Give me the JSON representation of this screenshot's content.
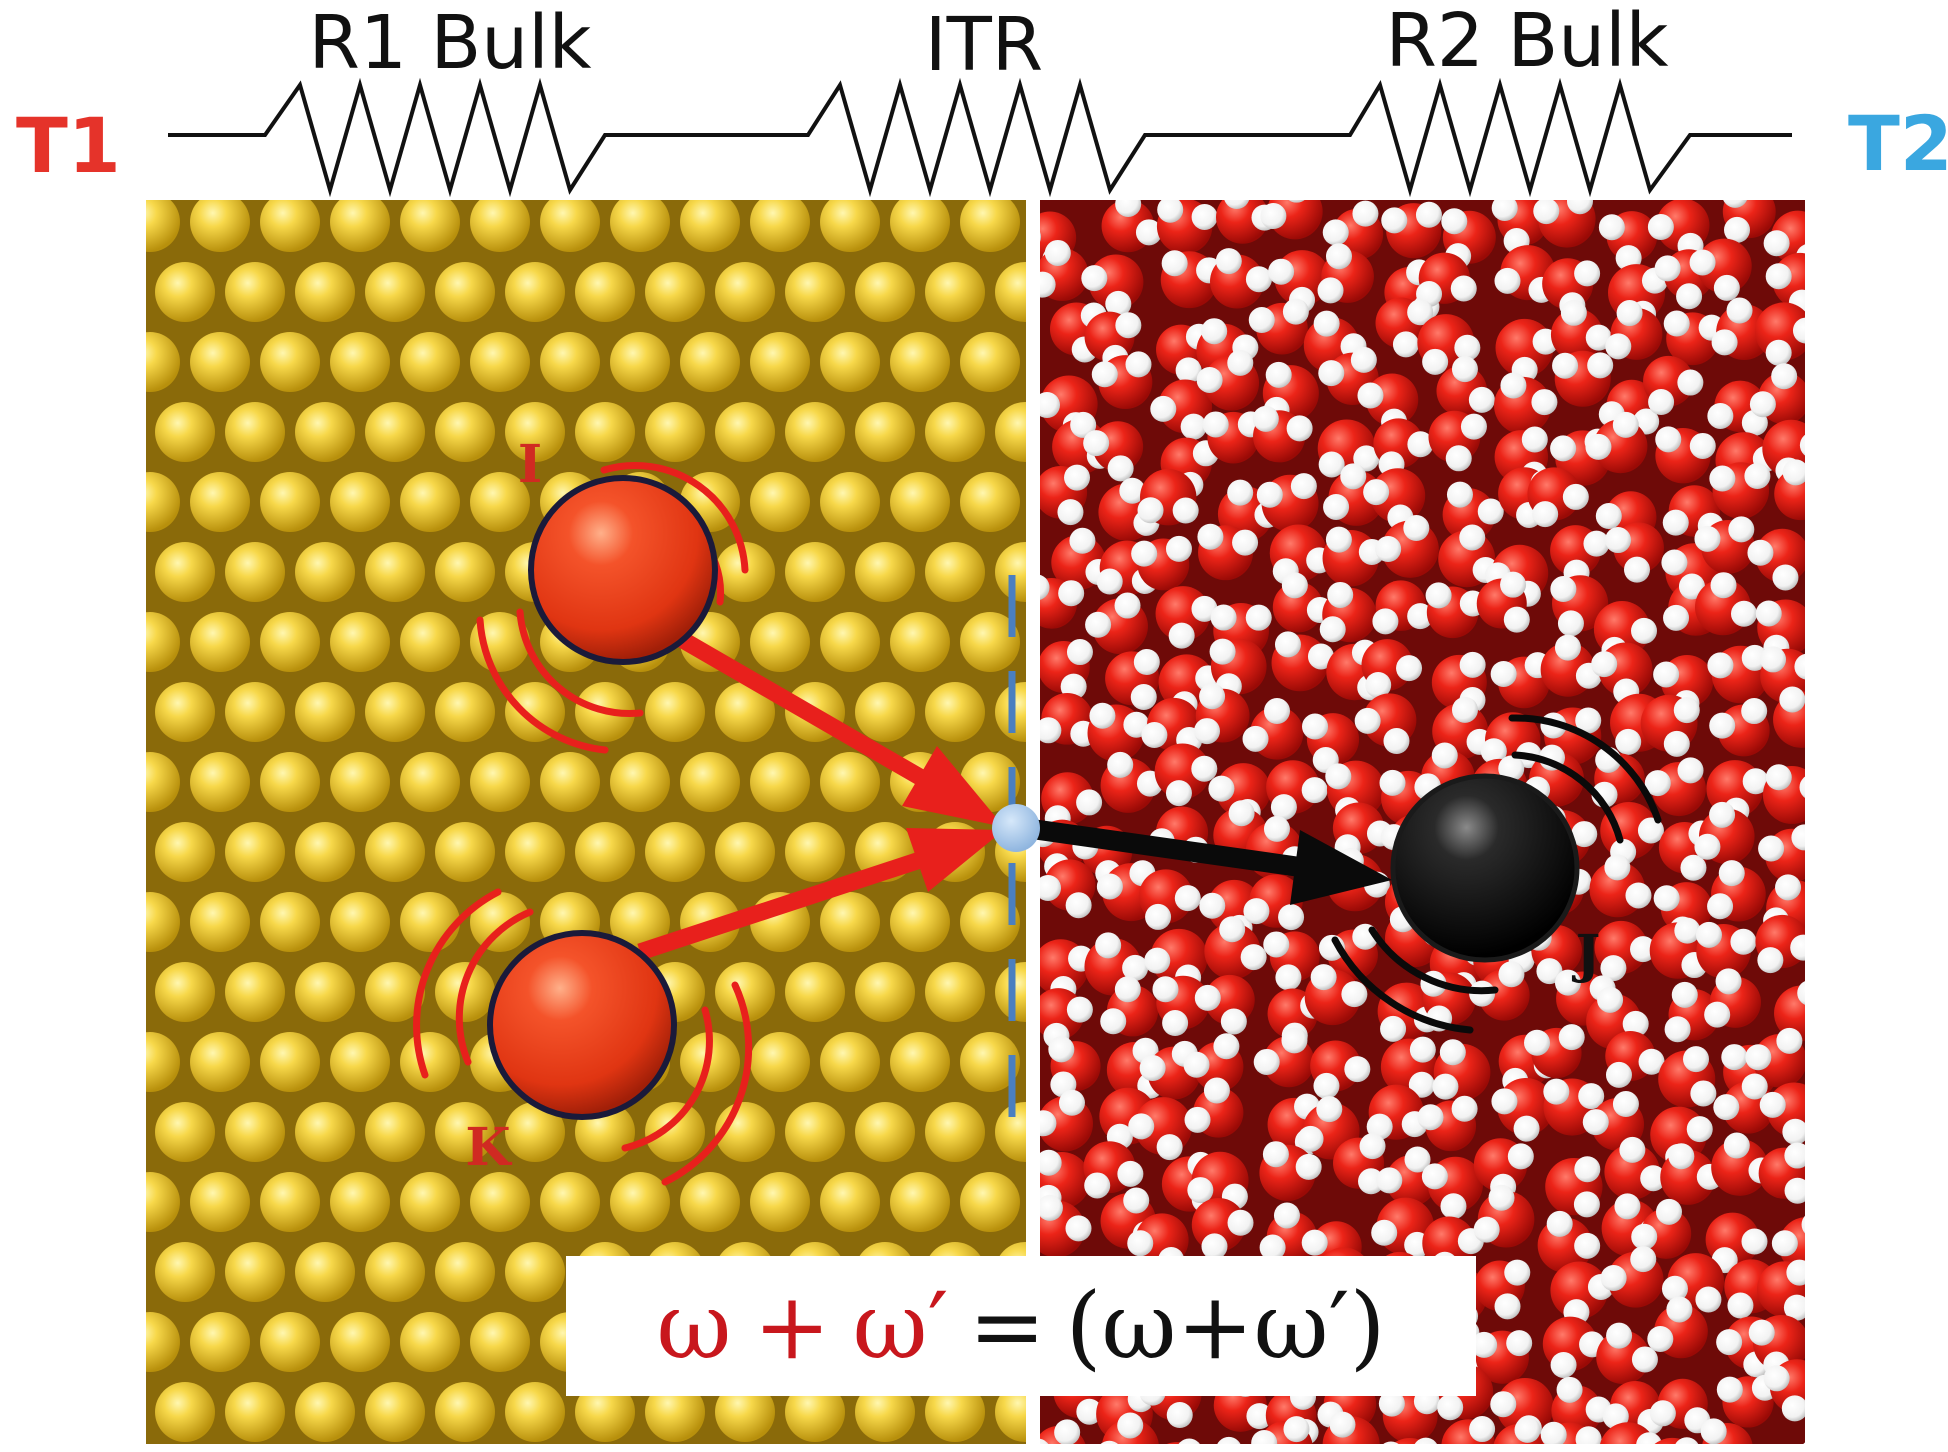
{
  "header": {
    "r1_label": "R1 Bulk",
    "itr_label": "ITR",
    "r2_label": "R2 Bulk",
    "t1_label": "T1",
    "t2_label": "T2"
  },
  "atoms": {
    "i_label": "I",
    "k_label": "K",
    "j_label": "J"
  },
  "equation": {
    "lhs_omega": "ω",
    "lhs_plus": "+",
    "lhs_omega_prime": "ω′",
    "equals": "=",
    "rhs": "(ω+ω′)"
  },
  "colors": {
    "t1": "#e5332a",
    "t2": "#3aa7e0",
    "gold": "#f2cd2e",
    "gold_shadow": "#8a6a0a",
    "water_oxygen": "#e01818",
    "water_hydrogen": "#ffffff",
    "arrow_red": "#e8201c",
    "arrow_black": "#0a0a0a",
    "interface_dash": "#4a7fc0",
    "focus_point": "#a8c8ea"
  }
}
